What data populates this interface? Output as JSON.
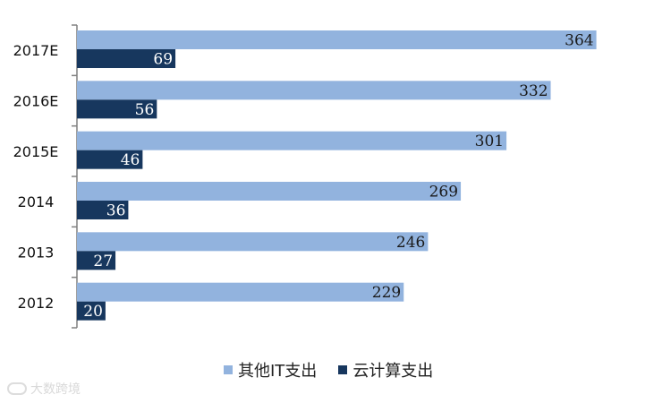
{
  "chart_data": {
    "type": "bar",
    "orientation": "horizontal",
    "categories": [
      "2012",
      "2013",
      "2014",
      "2015E",
      "2016E",
      "2017E"
    ],
    "series": [
      {
        "name": "其他IT支出",
        "values": [
          229,
          246,
          269,
          301,
          332,
          364
        ],
        "color": "#92b3de",
        "label_color": "#1a1a1a"
      },
      {
        "name": "云计算支出",
        "values": [
          20,
          27,
          36,
          46,
          56,
          69
        ],
        "color": "#17375e",
        "label_color": "#ffffff"
      }
    ],
    "data_labels": true,
    "legend_position": "bottom",
    "grid": false,
    "xlim": [
      0,
      400
    ]
  },
  "watermark": {
    "text": "大数跨境"
  }
}
